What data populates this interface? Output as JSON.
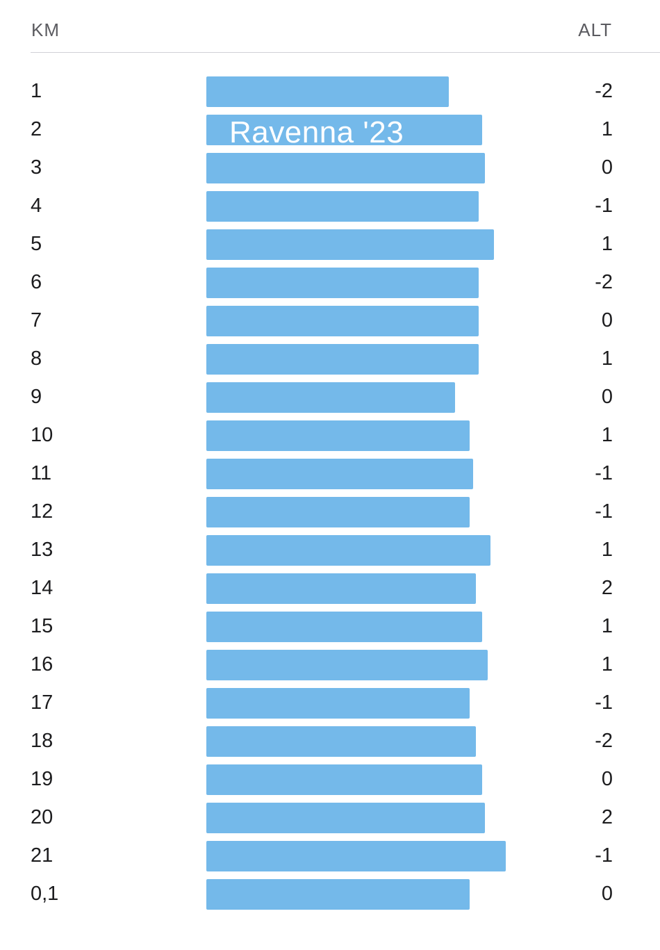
{
  "header": {
    "km_label": "KM",
    "alt_label": "ALT"
  },
  "overlay_text": "Ravenna '23",
  "colors": {
    "bar": "#74b9ea",
    "divider": "#d1d1d6",
    "header_text": "#5b5b60"
  },
  "splits": [
    {
      "km": "1",
      "alt": "-2",
      "bar_fraction": 0.81
    },
    {
      "km": "2",
      "alt": "1",
      "bar_fraction": 0.92
    },
    {
      "km": "3",
      "alt": "0",
      "bar_fraction": 0.93
    },
    {
      "km": "4",
      "alt": "-1",
      "bar_fraction": 0.91
    },
    {
      "km": "5",
      "alt": "1",
      "bar_fraction": 0.96
    },
    {
      "km": "6",
      "alt": "-2",
      "bar_fraction": 0.91
    },
    {
      "km": "7",
      "alt": "0",
      "bar_fraction": 0.91
    },
    {
      "km": "8",
      "alt": "1",
      "bar_fraction": 0.91
    },
    {
      "km": "9",
      "alt": "0",
      "bar_fraction": 0.83
    },
    {
      "km": "10",
      "alt": "1",
      "bar_fraction": 0.88
    },
    {
      "km": "11",
      "alt": "-1",
      "bar_fraction": 0.89
    },
    {
      "km": "12",
      "alt": "-1",
      "bar_fraction": 0.88
    },
    {
      "km": "13",
      "alt": "1",
      "bar_fraction": 0.95
    },
    {
      "km": "14",
      "alt": "2",
      "bar_fraction": 0.9
    },
    {
      "km": "15",
      "alt": "1",
      "bar_fraction": 0.92
    },
    {
      "km": "16",
      "alt": "1",
      "bar_fraction": 0.94
    },
    {
      "km": "17",
      "alt": "-1",
      "bar_fraction": 0.88
    },
    {
      "km": "18",
      "alt": "-2",
      "bar_fraction": 0.9
    },
    {
      "km": "19",
      "alt": "0",
      "bar_fraction": 0.92
    },
    {
      "km": "20",
      "alt": "2",
      "bar_fraction": 0.93
    },
    {
      "km": "21",
      "alt": "-1",
      "bar_fraction": 1.0
    },
    {
      "km": "0,1",
      "alt": "0",
      "bar_fraction": 0.88
    }
  ]
}
